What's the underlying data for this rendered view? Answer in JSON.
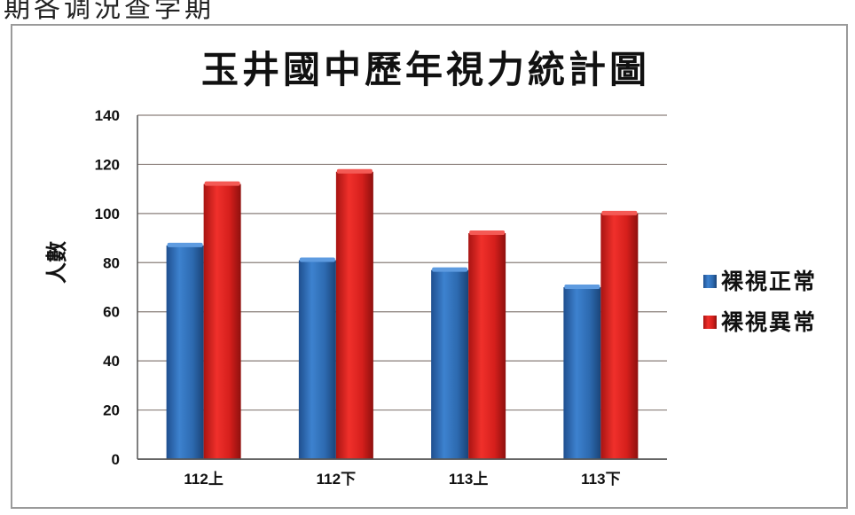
{
  "top_fragment": "期各调況查学期",
  "chart_data": {
    "type": "bar",
    "title": "玉井國中歷年視力統計圖",
    "xlabel": "",
    "ylabel": "人數",
    "categories": [
      "112上",
      "112下",
      "113上",
      "113下"
    ],
    "series": [
      {
        "name": "裸視正常",
        "values": [
          87,
          81,
          77,
          70
        ],
        "color": "#2f6fb8"
      },
      {
        "name": "裸視異常",
        "values": [
          112,
          117,
          92,
          100
        ],
        "color": "#e02320"
      }
    ],
    "ylim": [
      0,
      140
    ],
    "yticks": [
      0,
      20,
      40,
      60,
      80,
      100,
      120,
      140
    ],
    "grid": true,
    "legend": "right"
  }
}
